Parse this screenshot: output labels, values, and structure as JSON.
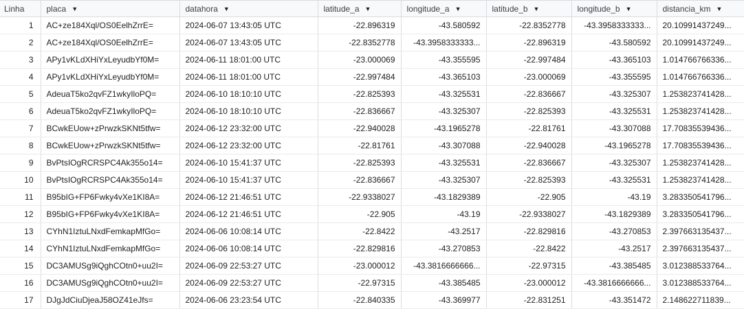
{
  "columns": [
    {
      "label": "Linha",
      "has_menu": false
    },
    {
      "label": "placa",
      "has_menu": true
    },
    {
      "label": "datahora",
      "has_menu": true
    },
    {
      "label": "latitude_a",
      "has_menu": true
    },
    {
      "label": "longitude_a",
      "has_menu": true
    },
    {
      "label": "latitude_b",
      "has_menu": true
    },
    {
      "label": "longitude_b",
      "has_menu": true
    },
    {
      "label": "distancia_km",
      "has_menu": true
    }
  ],
  "caret_glyph": "▼",
  "rows": [
    [
      "1",
      "AC+ze184Xql/OS0EelhZrrE=",
      "2024-06-07 13:43:05 UTC",
      "-22.896319",
      "-43.580592",
      "-22.8352778",
      "-43.3958333333...",
      "20.10991437249..."
    ],
    [
      "2",
      "AC+ze184Xql/OS0EelhZrrE=",
      "2024-06-07 13:43:05 UTC",
      "-22.8352778",
      "-43.3958333333...",
      "-22.896319",
      "-43.580592",
      "20.10991437249..."
    ],
    [
      "3",
      "APy1vKLdXHiYxLeyudbYf0M=",
      "2024-06-11 18:01:00 UTC",
      "-23.000069",
      "-43.355595",
      "-22.997484",
      "-43.365103",
      "1.014766766336..."
    ],
    [
      "4",
      "APy1vKLdXHiYxLeyudbYf0M=",
      "2024-06-11 18:01:00 UTC",
      "-22.997484",
      "-43.365103",
      "-23.000069",
      "-43.355595",
      "1.014766766336..."
    ],
    [
      "5",
      "AdeuaT5ko2qvFZ1wkyIloPQ=",
      "2024-06-10 18:10:10 UTC",
      "-22.825393",
      "-43.325531",
      "-22.836667",
      "-43.325307",
      "1.253823741428..."
    ],
    [
      "6",
      "AdeuaT5ko2qvFZ1wkyIloPQ=",
      "2024-06-10 18:10:10 UTC",
      "-22.836667",
      "-43.325307",
      "-22.825393",
      "-43.325531",
      "1.253823741428..."
    ],
    [
      "7",
      "BCwkEUow+zPrwzkSKNt5tfw=",
      "2024-06-12 23:32:00 UTC",
      "-22.940028",
      "-43.1965278",
      "-22.81761",
      "-43.307088",
      "17.70835539436..."
    ],
    [
      "8",
      "BCwkEUow+zPrwzkSKNt5tfw=",
      "2024-06-12 23:32:00 UTC",
      "-22.81761",
      "-43.307088",
      "-22.940028",
      "-43.1965278",
      "17.70835539436..."
    ],
    [
      "9",
      "BvPtsIOgRCRSPC4Ak355o14=",
      "2024-06-10 15:41:37 UTC",
      "-22.825393",
      "-43.325531",
      "-22.836667",
      "-43.325307",
      "1.253823741428..."
    ],
    [
      "10",
      "BvPtsIOgRCRSPC4Ak355o14=",
      "2024-06-10 15:41:37 UTC",
      "-22.836667",
      "-43.325307",
      "-22.825393",
      "-43.325531",
      "1.253823741428..."
    ],
    [
      "11",
      "B95bIG+FP6Fwky4vXe1KI8A=",
      "2024-06-12 21:46:51 UTC",
      "-22.9338027",
      "-43.1829389",
      "-22.905",
      "-43.19",
      "3.283350541796..."
    ],
    [
      "12",
      "B95bIG+FP6Fwky4vXe1KI8A=",
      "2024-06-12 21:46:51 UTC",
      "-22.905",
      "-43.19",
      "-22.9338027",
      "-43.1829389",
      "3.283350541796..."
    ],
    [
      "13",
      "CYhN1IztuLNxdFemkapMfGo=",
      "2024-06-06 10:08:14 UTC",
      "-22.8422",
      "-43.2517",
      "-22.829816",
      "-43.270853",
      "2.397663135437..."
    ],
    [
      "14",
      "CYhN1IztuLNxdFemkapMfGo=",
      "2024-06-06 10:08:14 UTC",
      "-22.829816",
      "-43.270853",
      "-22.8422",
      "-43.2517",
      "2.397663135437..."
    ],
    [
      "15",
      "DC3AMUSg9iQghCOtn0+uu2I=",
      "2024-06-09 22:53:27 UTC",
      "-23.000012",
      "-43.3816666666...",
      "-22.97315",
      "-43.385485",
      "3.012388533764..."
    ],
    [
      "16",
      "DC3AMUSg9iQghCOtn0+uu2I=",
      "2024-06-09 22:53:27 UTC",
      "-22.97315",
      "-43.385485",
      "-23.000012",
      "-43.3816666666...",
      "3.012388533764..."
    ],
    [
      "17",
      "DJgJdCiuDjeaJ58OZ41eJfs=",
      "2024-06-06 23:23:54 UTC",
      "-22.840335",
      "-43.369977",
      "-22.831251",
      "-43.351472",
      "2.148622711839..."
    ]
  ]
}
